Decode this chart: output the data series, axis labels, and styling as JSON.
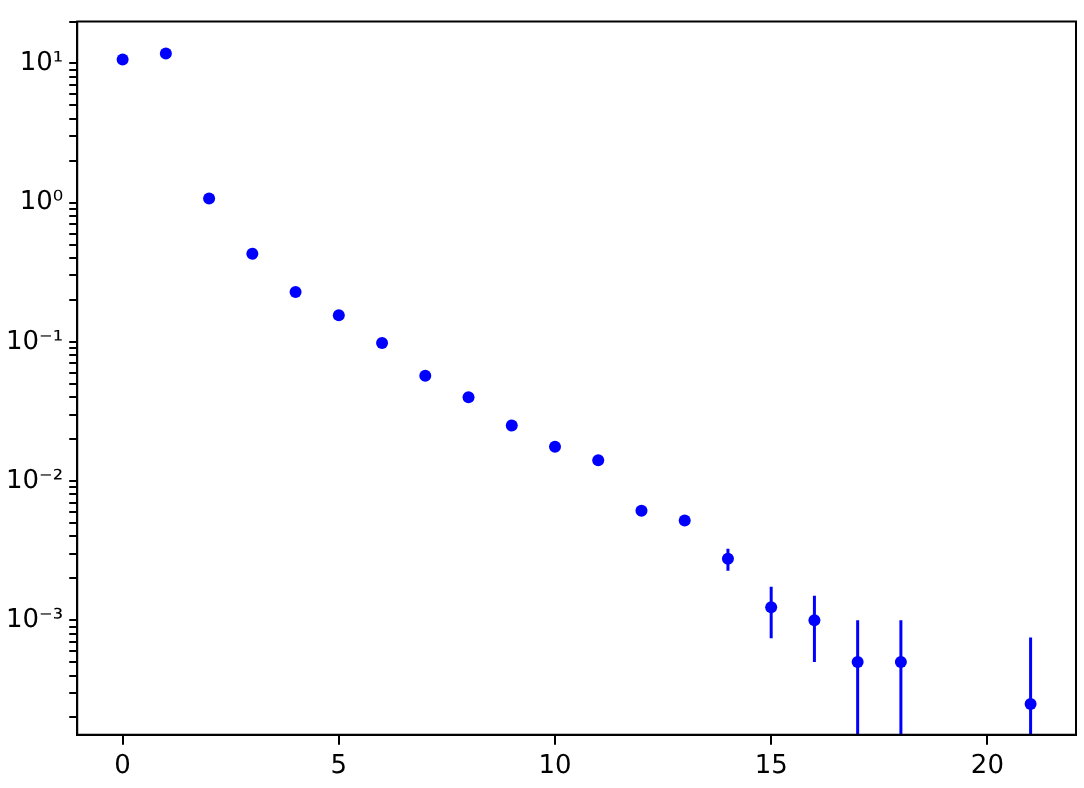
{
  "chart_data": {
    "type": "scatter",
    "log": "y",
    "grid": false,
    "marker": "circle",
    "x": [
      0,
      1,
      2,
      3,
      4,
      5,
      6,
      7,
      8,
      9,
      10,
      11,
      12,
      13,
      14,
      15,
      16,
      17,
      18,
      21
    ],
    "series": [
      {
        "color": "#0000ff",
        "values": [
          10.7,
          11.8,
          1.07,
          0.43,
          0.228,
          0.155,
          0.098,
          0.057,
          0.04,
          0.025,
          0.0176,
          0.0141,
          0.0061,
          0.0052,
          0.00276,
          0.00124,
          0.001,
          0.0005,
          0.0005,
          0.00025
        ],
        "errors": [
          null,
          null,
          null,
          null,
          null,
          null,
          null,
          null,
          null,
          null,
          null,
          null,
          null,
          null,
          0.0005,
          0.0005,
          0.0005,
          [
            0.00015,
            0.001
          ],
          [
            0.00015,
            0.001
          ],
          [
            0.00015,
            0.00075
          ]
        ]
      }
    ],
    "xlim": [
      -1.05,
      22.05
    ],
    "xticks": [
      0,
      5,
      10,
      15,
      20
    ],
    "ylim": [
      0.00015,
      20
    ],
    "yticks": [
      {
        "value": 0.0002,
        "label": null
      },
      {
        "value": 0.0003,
        "label": null
      },
      {
        "value": 0.0004,
        "label": null
      },
      {
        "value": 0.0005,
        "label": null
      },
      {
        "value": 0.0006,
        "label": null
      },
      {
        "value": 0.0007,
        "label": null
      },
      {
        "value": 0.0008,
        "label": null
      },
      {
        "value": 0.0009,
        "label": null
      },
      {
        "value": 0.001,
        "label": "10⁻³"
      },
      {
        "value": 0.002,
        "label": null
      },
      {
        "value": 0.003,
        "label": null
      },
      {
        "value": 0.004,
        "label": null
      },
      {
        "value": 0.005,
        "label": null
      },
      {
        "value": 0.006,
        "label": null
      },
      {
        "value": 0.007,
        "label": null
      },
      {
        "value": 0.008,
        "label": null
      },
      {
        "value": 0.009,
        "label": null
      },
      {
        "value": 0.01,
        "label": "10⁻²"
      },
      {
        "value": 0.02,
        "label": null
      },
      {
        "value": 0.03,
        "label": null
      },
      {
        "value": 0.04,
        "label": null
      },
      {
        "value": 0.05,
        "label": null
      },
      {
        "value": 0.06,
        "label": null
      },
      {
        "value": 0.07,
        "label": null
      },
      {
        "value": 0.08,
        "label": null
      },
      {
        "value": 0.09,
        "label": null
      },
      {
        "value": 0.1,
        "label": "10⁻¹"
      },
      {
        "value": 0.2,
        "label": null
      },
      {
        "value": 0.3,
        "label": null
      },
      {
        "value": 0.4,
        "label": null
      },
      {
        "value": 0.5,
        "label": null
      },
      {
        "value": 0.6,
        "label": null
      },
      {
        "value": 0.7,
        "label": null
      },
      {
        "value": 0.8,
        "label": null
      },
      {
        "value": 0.9,
        "label": null
      },
      {
        "value": 1,
        "label": "10⁰"
      },
      {
        "value": 2,
        "label": null
      },
      {
        "value": 3,
        "label": null
      },
      {
        "value": 4,
        "label": null
      },
      {
        "value": 5,
        "label": null
      },
      {
        "value": 6,
        "label": null
      },
      {
        "value": 7,
        "label": null
      },
      {
        "value": 8,
        "label": null
      },
      {
        "value": 9,
        "label": null
      },
      {
        "value": 10,
        "label": "10¹"
      },
      {
        "value": 20,
        "label": null
      }
    ]
  }
}
